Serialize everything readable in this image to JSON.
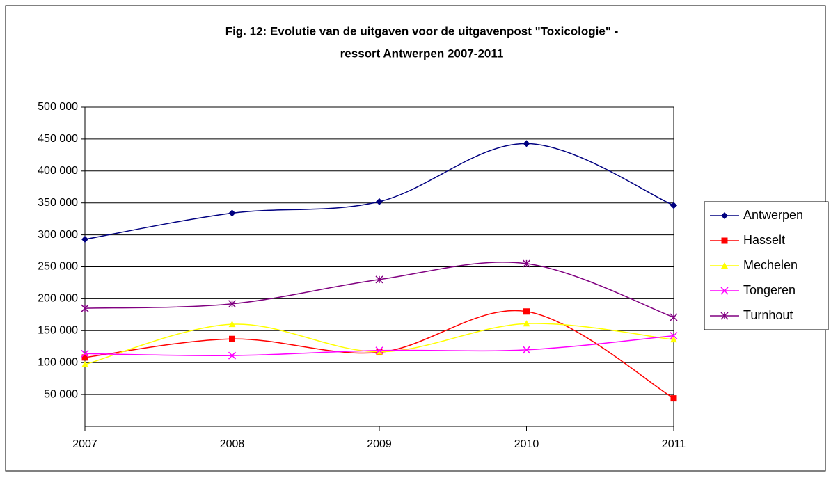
{
  "chart_data": {
    "type": "line",
    "title": [
      "Fig. 12: Evolutie van de uitgaven voor de uitgavenpost \"Toxicologie\" -",
      "ressort Antwerpen 2007-2011"
    ],
    "categories": [
      "2007",
      "2008",
      "2009",
      "2010",
      "2011"
    ],
    "series": [
      {
        "name": "Antwerpen",
        "color": "#000080",
        "marker": "diamond",
        "values": [
          293000,
          334000,
          352000,
          443000,
          346000
        ]
      },
      {
        "name": "Hasselt",
        "color": "#ff0000",
        "marker": "square",
        "values": [
          108000,
          137000,
          116000,
          180000,
          44000
        ]
      },
      {
        "name": "Mechelen",
        "color": "#ffff00",
        "marker": "triangle",
        "values": [
          97000,
          160000,
          117000,
          161000,
          136000
        ]
      },
      {
        "name": "Tongeren",
        "color": "#ff00ff",
        "marker": "x",
        "values": [
          114000,
          111000,
          119000,
          120000,
          142000
        ]
      },
      {
        "name": "Turnhout",
        "color": "#800080",
        "marker": "star",
        "values": [
          185000,
          192000,
          230000,
          255000,
          171000
        ]
      }
    ],
    "ylim": [
      0,
      500000
    ],
    "yticks": [
      {
        "value": 50000,
        "label": "50 000"
      },
      {
        "value": 100000,
        "label": "100 000"
      },
      {
        "value": 150000,
        "label": "150 000"
      },
      {
        "value": 200000,
        "label": "200 000"
      },
      {
        "value": 250000,
        "label": "250 000"
      },
      {
        "value": 300000,
        "label": "300 000"
      },
      {
        "value": 350000,
        "label": "350 000"
      },
      {
        "value": 400000,
        "label": "400 000"
      },
      {
        "value": 450000,
        "label": "450 000"
      },
      {
        "value": 500000,
        "label": "500 000"
      }
    ],
    "grid": true,
    "smooth": true,
    "legend": "right"
  }
}
